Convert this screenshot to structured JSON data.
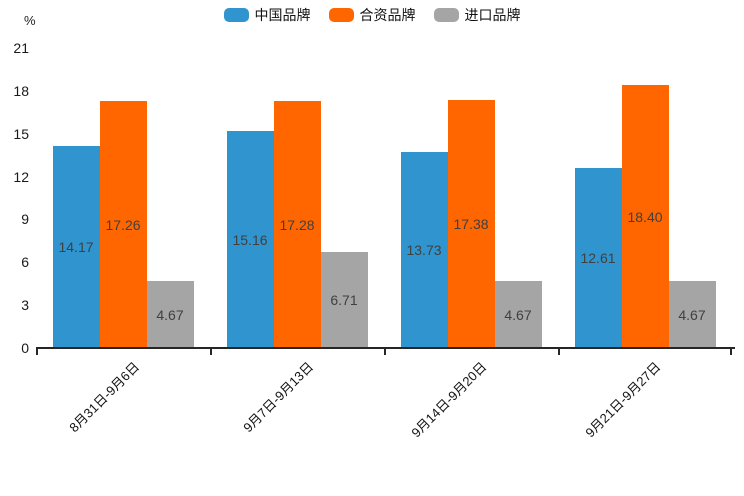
{
  "chart_data": {
    "type": "bar",
    "title": "",
    "unit_label": "%",
    "categories": [
      "8月31日-9月6日",
      "9月7日-9月13日",
      "9月14日-9月20日",
      "9月21日-9月27日"
    ],
    "series": [
      {
        "name": "中国品牌",
        "color": "#3095CE",
        "values": [
          14.17,
          15.16,
          13.73,
          12.61
        ]
      },
      {
        "name": "合资品牌",
        "color": "#FF6600",
        "values": [
          17.26,
          17.28,
          17.38,
          18.4
        ]
      },
      {
        "name": "进口品牌",
        "color": "#A5A5A5",
        "values": [
          4.67,
          6.71,
          4.67,
          4.67
        ]
      }
    ],
    "ylim": [
      0,
      21
    ],
    "yticks": [
      0,
      3,
      6,
      9,
      12,
      15,
      18,
      21
    ],
    "grid": false,
    "legend_position": "top",
    "value_labels": "inside-center",
    "value_label_decimals": 2
  }
}
